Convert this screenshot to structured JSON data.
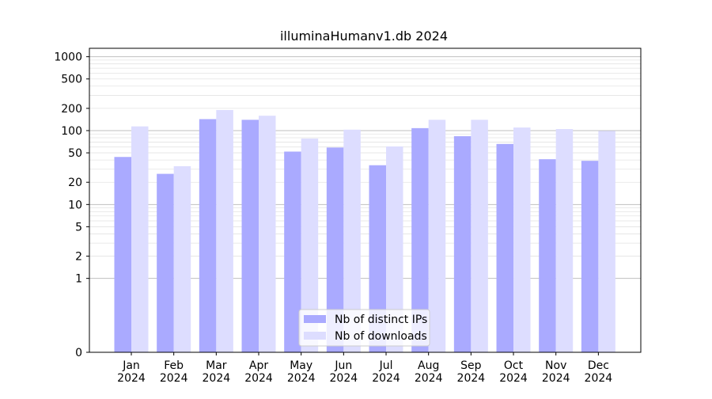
{
  "chart_data": {
    "type": "bar",
    "title": "illuminaHumanv1.db 2024",
    "xlabel": "",
    "ylabel": "",
    "scale": "symlog",
    "categories": [
      {
        "month": "Jan",
        "year": "2024"
      },
      {
        "month": "Feb",
        "year": "2024"
      },
      {
        "month": "Mar",
        "year": "2024"
      },
      {
        "month": "Apr",
        "year": "2024"
      },
      {
        "month": "May",
        "year": "2024"
      },
      {
        "month": "Jun",
        "year": "2024"
      },
      {
        "month": "Jul",
        "year": "2024"
      },
      {
        "month": "Aug",
        "year": "2024"
      },
      {
        "month": "Sep",
        "year": "2024"
      },
      {
        "month": "Oct",
        "year": "2024"
      },
      {
        "month": "Nov",
        "year": "2024"
      },
      {
        "month": "Dec",
        "year": "2024"
      }
    ],
    "series": [
      {
        "name": "Nb of distinct IPs",
        "color": "#aaaaff",
        "values": [
          44,
          26,
          143,
          140,
          52,
          59,
          34,
          108,
          84,
          66,
          41,
          39
        ]
      },
      {
        "name": "Nb of downloads",
        "color": "#ddddff",
        "values": [
          114,
          33,
          190,
          159,
          78,
          103,
          61,
          140,
          140,
          110,
          105,
          99
        ]
      }
    ],
    "yticks": [
      {
        "value": 0,
        "label": "0"
      },
      {
        "value": 1,
        "label": "1"
      },
      {
        "value": 2,
        "label": "2"
      },
      {
        "value": 5,
        "label": "5"
      },
      {
        "value": 10,
        "label": "10"
      },
      {
        "value": 20,
        "label": "20"
      },
      {
        "value": 50,
        "label": "50"
      },
      {
        "value": 100,
        "label": "100"
      },
      {
        "value": 200,
        "label": "200"
      },
      {
        "value": 500,
        "label": "500"
      },
      {
        "value": 1000,
        "label": "1000"
      }
    ],
    "ylim": [
      0,
      1300
    ],
    "grid": true,
    "legend_position": "bottom-center"
  }
}
